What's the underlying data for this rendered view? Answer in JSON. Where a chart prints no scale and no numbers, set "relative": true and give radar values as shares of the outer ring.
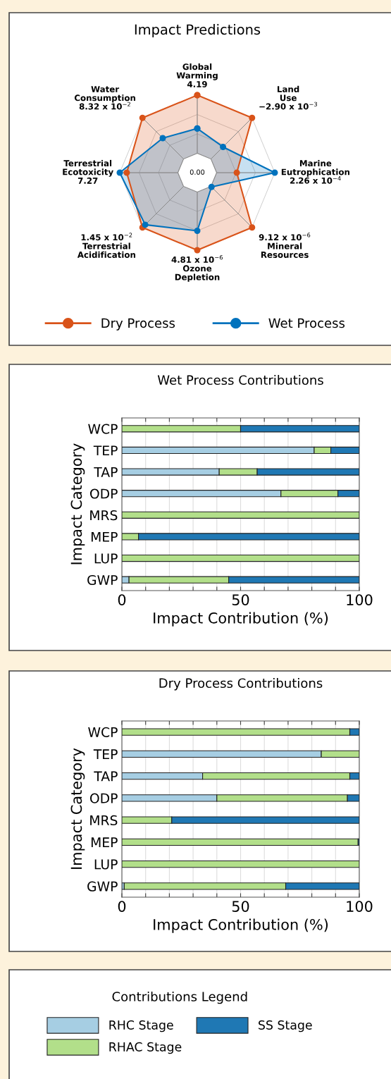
{
  "chart_data": [
    {
      "type": "radar",
      "title": "Impact Predictions",
      "relative": true,
      "legend": "bottom",
      "marker": "circle",
      "line_style": "solid",
      "categories": [
        "Global\nWarming\n4.19",
        "Land\nUse\n−2.90 x 10$^{−3}$",
        "Marine\nEutrophication\n2.26 x 10$^{−4}$",
        "9.12 x 10$^{−6}$\nMineral\nResources",
        "4.81 x 10$^{−6}$\nOzone\nDepletion",
        "1.45 x 10$^{−2}$\nTerrestrial\nAcidification",
        "Terrestrial\nEcotoxicity\n7.27",
        "Water\nConsumption\n8.32 x 10$^{−2}$"
      ],
      "annotations": [
        "0.00"
      ],
      "series": [
        {
          "name": "Dry Process",
          "color": "#d95319",
          "values": [
            1.0,
            1.0,
            0.51,
            1.0,
            1.0,
            1.0,
            0.91,
            1.0
          ]
        },
        {
          "name": "Wet Process",
          "color": "#0072bd",
          "values": [
            0.57,
            0.47,
            1.0,
            0.26,
            0.75,
            0.95,
            1.0,
            0.63
          ]
        }
      ]
    },
    {
      "type": "bar",
      "orientation": "horizontal",
      "stacked": true,
      "title": "Wet Process Contributions",
      "xlabel": "Impact Contribution (%)",
      "ylabel": "Impact Category",
      "grid": "x",
      "legend": "bottom",
      "legend_title": "Contributions Legend",
      "categories": [
        "WCP",
        "TEP",
        "TAP",
        "ODP",
        "MRS",
        "MEP",
        "LUP",
        "GWP"
      ],
      "xlim": [
        0,
        100
      ],
      "xticks": [
        0,
        {
          "value": 10,
          "label": null
        },
        {
          "value": 20,
          "label": null
        },
        {
          "value": 30,
          "label": null
        },
        {
          "value": 40,
          "label": null
        },
        50,
        {
          "value": 60,
          "label": null
        },
        {
          "value": 70,
          "label": null
        },
        {
          "value": 80,
          "label": null
        },
        {
          "value": 90,
          "label": null
        },
        100
      ],
      "series": [
        {
          "name": "RHC Stage",
          "color": "#a6cee3",
          "values": [
            0,
            81,
            41,
            67,
            0,
            0,
            0,
            3
          ]
        },
        {
          "name": "RHAC Stage",
          "color": "#b2df8a",
          "values": [
            50,
            7,
            16,
            24,
            100,
            7,
            100,
            42
          ]
        },
        {
          "name": "SS Stage",
          "color": "#1f78b4",
          "values": [
            50,
            12,
            43,
            9,
            0,
            93,
            0,
            55
          ]
        }
      ]
    },
    {
      "type": "bar",
      "orientation": "horizontal",
      "stacked": true,
      "title": "Dry Process Contributions",
      "xlabel": "Impact Contribution (%)",
      "ylabel": "Impact Category",
      "grid": "x",
      "categories": [
        "WCP",
        "TEP",
        "TAP",
        "ODP",
        "MRS",
        "MEP",
        "LUP",
        "GWP"
      ],
      "xlim": [
        0,
        100
      ],
      "xticks": [
        0,
        {
          "value": 10,
          "label": null
        },
        {
          "value": 20,
          "label": null
        },
        {
          "value": 30,
          "label": null
        },
        {
          "value": 40,
          "label": null
        },
        50,
        {
          "value": 60,
          "label": null
        },
        {
          "value": 70,
          "label": null
        },
        {
          "value": 80,
          "label": null
        },
        {
          "value": 90,
          "label": null
        },
        100
      ],
      "series": [
        {
          "color": "#a6cee3",
          "values": [
            0,
            84,
            34,
            40,
            0,
            0,
            0,
            1
          ]
        },
        {
          "color": "#b2df8a",
          "values": [
            96,
            16,
            62,
            55,
            21,
            99.5,
            100,
            68
          ]
        },
        {
          "color": "#1f78b4",
          "values": [
            4,
            0,
            4,
            5,
            79,
            0.5,
            0,
            31
          ]
        }
      ]
    }
  ]
}
